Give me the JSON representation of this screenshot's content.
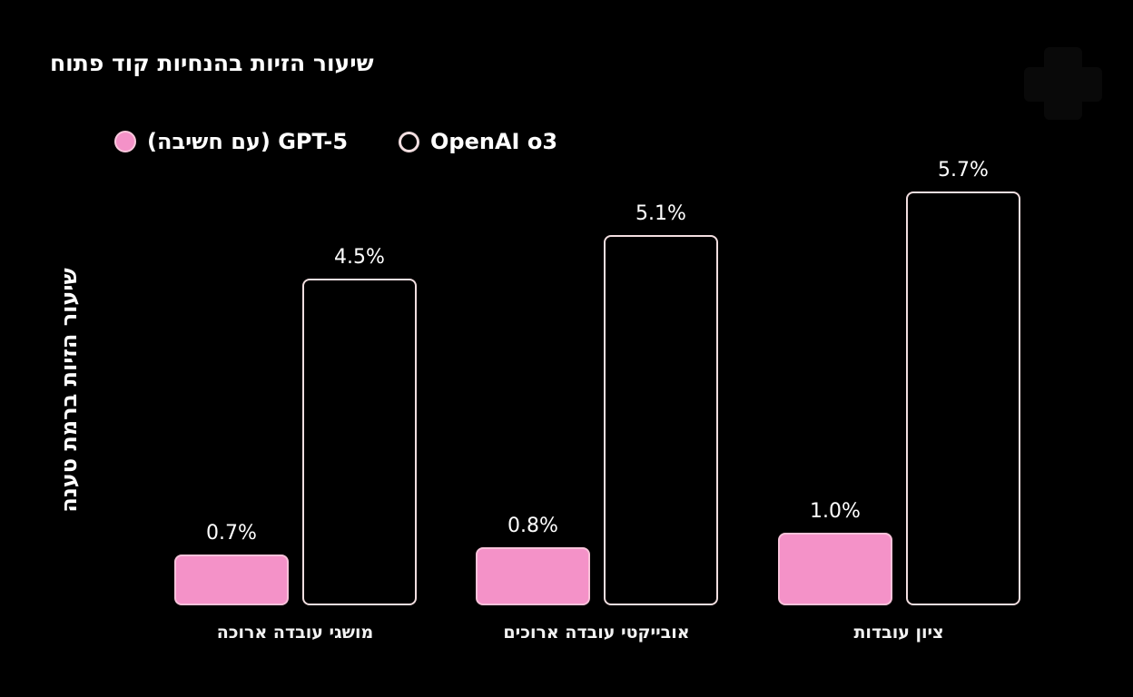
{
  "page": {
    "background": "#000000",
    "text_color": "#ffffff"
  },
  "title": "שיעור הזיות בהנחיות קוד פתוח",
  "ylabel": "שיעור הזיות ברמת טענה",
  "legend": {
    "position": "top-left",
    "items": [
      {
        "label": "GPT-5 (עם חשיבה)",
        "marker": "filled-circle",
        "color": "#f492c8"
      },
      {
        "label": "OpenAI o3",
        "marker": "outlined-circle",
        "color": "#f2dee0"
      }
    ]
  },
  "chart_data": {
    "type": "bar",
    "title": "שיעור הזיות בהנחיות קוד פתוח",
    "xlabel": "",
    "ylabel": "שיעור הזיות ברמת טענה",
    "unit": "%",
    "ylim": [
      0,
      6
    ],
    "grid": false,
    "axis_lines": false,
    "legend_position": "top-left",
    "text_direction": "rtl",
    "categories": [
      "מושגי עובדה ארוכה",
      "אובייקטי עובדה ארוכים",
      "ציון עובדות"
    ],
    "series": [
      {
        "name": "GPT-5 (עם חשיבה)",
        "style": "filled",
        "fill": "#f492c8",
        "outline": "#f9c2da",
        "values": [
          0.7,
          0.8,
          1.0
        ],
        "labels": [
          "0.7%",
          "0.8%",
          "1.0%"
        ]
      },
      {
        "name": "OpenAI o3",
        "style": "outlined",
        "fill": "transparent",
        "outline": "#f2dee0",
        "values": [
          4.5,
          5.1,
          5.7
        ],
        "labels": [
          "4.5%",
          "5.1%",
          "5.7%"
        ]
      }
    ]
  }
}
